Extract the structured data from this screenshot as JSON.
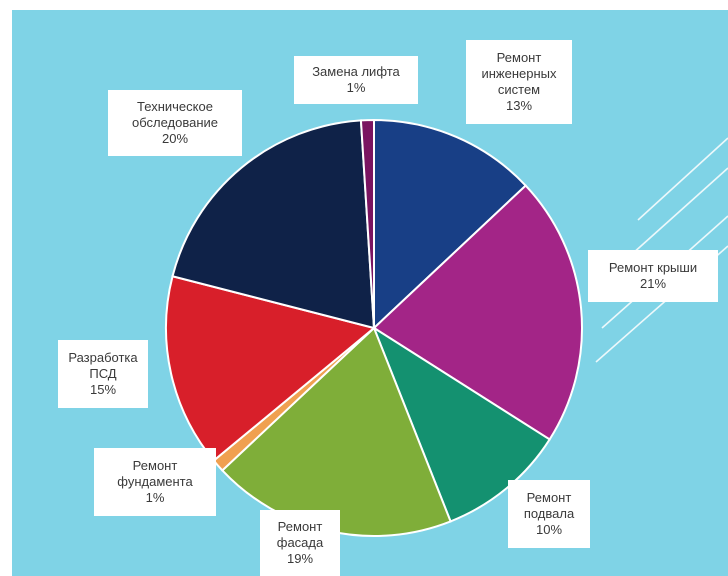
{
  "chart_data": {
    "type": "pie",
    "title": "",
    "slices": [
      {
        "name": "Ремонт инженерных систем",
        "lines": [
          "Ремонт",
          "инженерных",
          "систем",
          "13%"
        ],
        "value": 13,
        "color": "#183f86"
      },
      {
        "name": "Ремонт крыши",
        "lines": [
          "Ремонт крыши",
          "21%"
        ],
        "value": 21,
        "color": "#a32587"
      },
      {
        "name": "Ремонт подвала",
        "lines": [
          "Ремонт",
          "подвала",
          "10%"
        ],
        "value": 10,
        "color": "#149170"
      },
      {
        "name": "Ремонт фасада",
        "lines": [
          "Ремонт",
          "фасада",
          "19%"
        ],
        "value": 19,
        "color": "#7fae39"
      },
      {
        "name": "Ремонт фундамента",
        "lines": [
          "Ремонт",
          "фундамента",
          "1%"
        ],
        "value": 1,
        "color": "#f0a050"
      },
      {
        "name": "Разработка ПСД",
        "lines": [
          "Разработка",
          "ПСД",
          "15%"
        ],
        "value": 15,
        "color": "#d81f2a"
      },
      {
        "name": "Техническое обследование",
        "lines": [
          "Техническое",
          "обследование",
          "20%"
        ],
        "value": 20,
        "color": "#0f2248"
      },
      {
        "name": "Замена лифта",
        "lines": [
          "Замена лифта",
          "1%"
        ],
        "value": 1,
        "color": "#7a1461"
      }
    ]
  }
}
